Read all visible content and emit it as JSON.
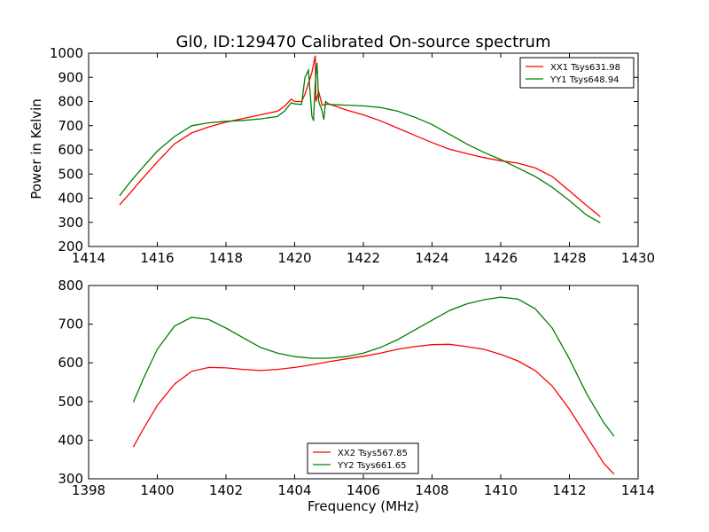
{
  "chart_data": [
    {
      "type": "line",
      "title": "Gl0, ID:129470 Calibrated On-source spectrum",
      "xlabel": "",
      "ylabel": "Power in Kelvin",
      "xlim": [
        1414,
        1430
      ],
      "ylim": [
        200,
        1000
      ],
      "xticks": [
        "1414",
        "1416",
        "1418",
        "1420",
        "1422",
        "1424",
        "1426",
        "1428",
        "1430"
      ],
      "yticks": [
        "200",
        "300",
        "400",
        "500",
        "600",
        "700",
        "800",
        "900",
        "1000"
      ],
      "legend_position": "top-right",
      "series": [
        {
          "name": "XX1 Tsys631.98",
          "color": "#ff0000",
          "x": [
            1414.9,
            1415.2,
            1415.5,
            1416.0,
            1416.5,
            1417.0,
            1417.5,
            1418.0,
            1418.5,
            1419.0,
            1419.5,
            1419.7,
            1419.9,
            1420.0,
            1420.2,
            1420.3,
            1420.5,
            1420.6,
            1420.62,
            1420.7,
            1420.8,
            1421.0,
            1421.5,
            1422.0,
            1422.5,
            1423.0,
            1423.5,
            1424.0,
            1424.5,
            1425.0,
            1425.5,
            1426.0,
            1426.5,
            1427.0,
            1427.5,
            1428.0,
            1428.5,
            1428.9
          ],
          "values": [
            372,
            420,
            470,
            550,
            625,
            670,
            695,
            715,
            730,
            745,
            760,
            780,
            810,
            800,
            800,
            830,
            920,
            990,
            800,
            840,
            785,
            790,
            765,
            745,
            720,
            690,
            660,
            630,
            603,
            585,
            568,
            555,
            545,
            525,
            490,
            430,
            370,
            323
          ]
        },
        {
          "name": "YY1 Tsys648.94",
          "color": "#008000",
          "x": [
            1414.9,
            1415.2,
            1415.5,
            1416.0,
            1416.5,
            1417.0,
            1417.5,
            1418.0,
            1418.5,
            1419.0,
            1419.5,
            1419.7,
            1419.9,
            1420.0,
            1420.2,
            1420.3,
            1420.4,
            1420.5,
            1420.55,
            1420.6,
            1420.65,
            1420.7,
            1420.8,
            1420.85,
            1420.9,
            1421.0,
            1421.5,
            1422.0,
            1422.5,
            1423.0,
            1423.5,
            1424.0,
            1424.5,
            1425.0,
            1425.5,
            1426.0,
            1426.5,
            1427.0,
            1427.5,
            1428.0,
            1428.5,
            1428.9
          ],
          "values": [
            410,
            465,
            515,
            595,
            655,
            700,
            712,
            718,
            722,
            728,
            738,
            760,
            795,
            790,
            788,
            900,
            930,
            740,
            720,
            880,
            960,
            800,
            760,
            725,
            800,
            788,
            785,
            782,
            775,
            760,
            735,
            705,
            665,
            625,
            590,
            560,
            525,
            490,
            445,
            390,
            330,
            298
          ]
        }
      ]
    },
    {
      "type": "line",
      "title": "",
      "xlabel": "Frequency (MHz)",
      "ylabel": "",
      "xlim": [
        1398,
        1414
      ],
      "ylim": [
        300,
        800
      ],
      "xticks": [
        "1398",
        "1400",
        "1402",
        "1404",
        "1406",
        "1408",
        "1410",
        "1412",
        "1414"
      ],
      "yticks": [
        "300",
        "400",
        "500",
        "600",
        "700",
        "800"
      ],
      "legend_position": "bottom-center",
      "series": [
        {
          "name": "XX2 Tsys567.85",
          "color": "#ff0000",
          "x": [
            1399.3,
            1399.6,
            1400.0,
            1400.5,
            1401.0,
            1401.5,
            1402.0,
            1402.5,
            1403.0,
            1403.5,
            1404.0,
            1404.5,
            1405.0,
            1405.5,
            1406.0,
            1406.5,
            1407.0,
            1407.5,
            1408.0,
            1408.5,
            1409.0,
            1409.5,
            1410.0,
            1410.5,
            1411.0,
            1411.5,
            1412.0,
            1412.5,
            1413.0,
            1413.3
          ],
          "values": [
            382,
            430,
            490,
            545,
            578,
            588,
            587,
            583,
            580,
            583,
            588,
            595,
            603,
            610,
            617,
            625,
            635,
            642,
            647,
            648,
            642,
            635,
            622,
            605,
            580,
            540,
            480,
            410,
            340,
            312
          ]
        },
        {
          "name": "YY2 Tsys661.65",
          "color": "#008000",
          "x": [
            1399.3,
            1399.6,
            1400.0,
            1400.5,
            1401.0,
            1401.5,
            1402.0,
            1402.5,
            1403.0,
            1403.5,
            1404.0,
            1404.5,
            1405.0,
            1405.5,
            1406.0,
            1406.5,
            1407.0,
            1407.5,
            1408.0,
            1408.5,
            1409.0,
            1409.5,
            1410.0,
            1410.5,
            1411.0,
            1411.5,
            1412.0,
            1412.5,
            1413.0,
            1413.3
          ],
          "values": [
            498,
            560,
            635,
            695,
            718,
            712,
            690,
            665,
            640,
            625,
            616,
            612,
            612,
            616,
            625,
            640,
            660,
            685,
            710,
            735,
            752,
            763,
            770,
            765,
            740,
            690,
            610,
            520,
            445,
            410
          ]
        }
      ]
    }
  ]
}
